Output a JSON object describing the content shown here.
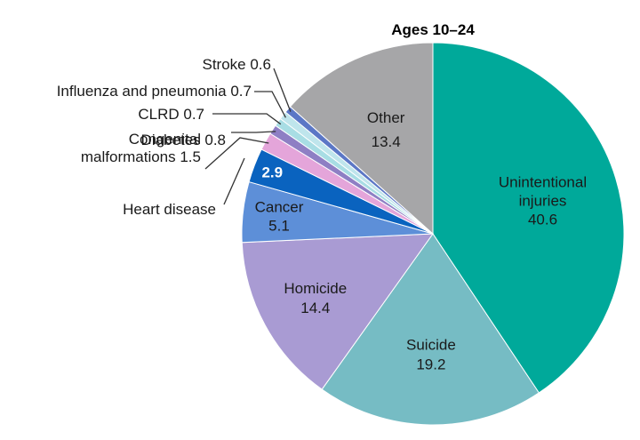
{
  "chart_data": {
    "type": "pie",
    "title": "Ages 10–24",
    "slices": [
      {
        "name": "Unintentional injuries",
        "value": 40.6,
        "color": "#00A99A",
        "label": [
          "Unintentional",
          "injuries",
          "40.6"
        ]
      },
      {
        "name": "Suicide",
        "value": 19.2,
        "color": "#76BCC4",
        "label": [
          "Suicide",
          "19.2"
        ]
      },
      {
        "name": "Homicide",
        "value": 14.4,
        "color": "#A99BD3",
        "label": [
          "Homicide",
          "14.4"
        ]
      },
      {
        "name": "Cancer",
        "value": 5.1,
        "color": "#5D8FD8",
        "label": [
          "Cancer",
          "5.1"
        ]
      },
      {
        "name": "Heart disease",
        "value": 2.9,
        "color": "#0A63BF",
        "label": [
          "2.9"
        ],
        "outside_label": [
          "Heart disease"
        ]
      },
      {
        "name": "Congenital malformations",
        "value": 1.5,
        "color": "#E4A5DA",
        "outside_label": [
          "Congenital",
          "malformations 1.5"
        ]
      },
      {
        "name": "Diabetes",
        "value": 0.8,
        "color": "#8E7FC4",
        "outside_label": [
          "Diabetes 0.8"
        ]
      },
      {
        "name": "CLRD",
        "value": 0.7,
        "color": "#A8DDE4",
        "outside_label": [
          "CLRD 0.7"
        ]
      },
      {
        "name": "Influenza and pneumonia",
        "value": 0.7,
        "color": "#BFE5EC",
        "outside_label": [
          "Influenza and pneumonia 0.7"
        ]
      },
      {
        "name": "Stroke",
        "value": 0.6,
        "color": "#5B77C6",
        "outside_label": [
          "Stroke 0.6"
        ]
      },
      {
        "name": "Other",
        "value": 13.4,
        "color": "#A6A6A8",
        "label": [
          "Other",
          "13.4"
        ]
      }
    ]
  }
}
